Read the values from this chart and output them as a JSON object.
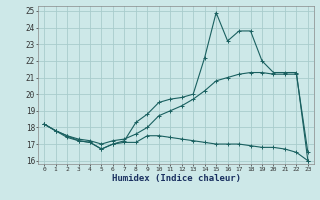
{
  "xlabel": "Humidex (Indice chaleur)",
  "bg_color": "#cde8e8",
  "grid_color": "#a8cccc",
  "line_color": "#1a6060",
  "xlim": [
    -0.5,
    23.5
  ],
  "ylim": [
    15.8,
    25.3
  ],
  "yticks": [
    16,
    17,
    18,
    19,
    20,
    21,
    22,
    23,
    24,
    25
  ],
  "xticks": [
    0,
    1,
    2,
    3,
    4,
    5,
    6,
    7,
    8,
    9,
    10,
    11,
    12,
    13,
    14,
    15,
    16,
    17,
    18,
    19,
    20,
    21,
    22,
    23
  ],
  "line1_x": [
    0,
    1,
    2,
    3,
    4,
    5,
    6,
    7,
    8,
    9,
    10,
    11,
    12,
    13,
    14,
    15,
    16,
    17,
    18,
    19,
    20,
    21,
    22,
    23
  ],
  "line1_y": [
    18.2,
    17.8,
    17.4,
    17.2,
    17.1,
    16.7,
    17.0,
    17.1,
    17.1,
    17.5,
    17.5,
    17.4,
    17.3,
    17.2,
    17.1,
    17.0,
    17.0,
    17.0,
    16.9,
    16.8,
    16.8,
    16.7,
    16.5,
    16.0
  ],
  "line2_x": [
    0,
    1,
    2,
    3,
    4,
    5,
    6,
    7,
    8,
    9,
    10,
    11,
    12,
    13,
    14,
    15,
    16,
    17,
    18,
    19,
    20,
    21,
    22,
    23
  ],
  "line2_y": [
    18.2,
    17.8,
    17.5,
    17.3,
    17.2,
    17.0,
    17.2,
    17.3,
    17.6,
    18.0,
    18.7,
    19.0,
    19.3,
    19.7,
    20.2,
    20.8,
    21.0,
    21.2,
    21.3,
    21.3,
    21.2,
    21.2,
    21.2,
    16.5
  ],
  "line3_x": [
    0,
    1,
    2,
    3,
    4,
    5,
    6,
    7,
    8,
    9,
    10,
    11,
    12,
    13,
    14,
    15,
    16,
    17,
    18,
    19,
    20,
    21,
    22,
    23
  ],
  "line3_y": [
    18.2,
    17.8,
    17.5,
    17.2,
    17.1,
    16.7,
    17.0,
    17.2,
    18.3,
    18.8,
    19.5,
    19.7,
    19.8,
    20.0,
    22.2,
    24.9,
    23.2,
    23.8,
    23.8,
    22.0,
    21.3,
    21.3,
    21.3,
    16.0
  ]
}
